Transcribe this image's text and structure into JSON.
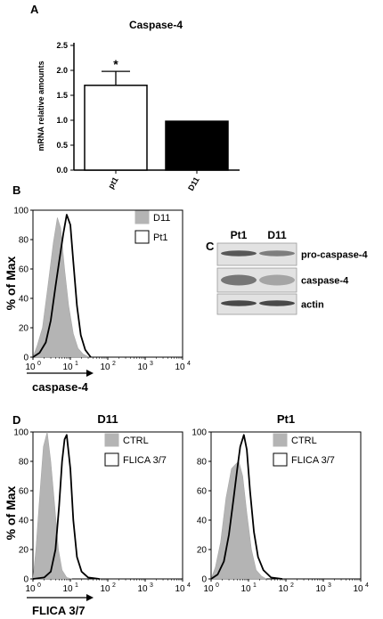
{
  "panel_a": {
    "letter": "A",
    "chart_data": {
      "type": "bar",
      "title": "Caspase-4",
      "ylabel": "mRNA relative amounts",
      "xlabel": "",
      "categories": [
        "pt1",
        "D11"
      ],
      "values": [
        1.7,
        0.98
      ],
      "errors": [
        0.28,
        0.0
      ],
      "fills": [
        "#ffffff",
        "#000000"
      ],
      "ylim": [
        0,
        2.5
      ],
      "yticks": [
        "0.0",
        "0.5",
        "1.0",
        "1.5",
        "2.0",
        "2.5"
      ],
      "annotation": "*"
    }
  },
  "panel_b": {
    "letter": "B",
    "chart_data": {
      "type": "area",
      "ylabel": "% of Max",
      "xlabel": "caspase-4",
      "x_scale": "log",
      "yticks": [
        "0",
        "20",
        "40",
        "60",
        "80",
        "100"
      ],
      "xticks": [
        "10",
        "10",
        "10",
        "10",
        "10"
      ],
      "xtick_exps": [
        "0",
        "1",
        "2",
        "3",
        "4"
      ],
      "series": [
        {
          "name": "D11",
          "style": "filled-gray",
          "x": [
            1,
            1.3,
            1.8,
            2.5,
            3.5,
            4.5,
            5.5,
            7,
            9,
            12,
            16,
            22,
            32
          ],
          "y": [
            0,
            8,
            20,
            48,
            78,
            95,
            88,
            60,
            35,
            16,
            6,
            2,
            0
          ]
        },
        {
          "name": "Pt1",
          "style": "black-outline",
          "x": [
            1,
            1.5,
            2.2,
            3,
            4,
            5,
            6.5,
            8,
            10,
            12,
            15,
            19,
            25,
            35
          ],
          "y": [
            0,
            3,
            10,
            25,
            48,
            65,
            84,
            97,
            90,
            65,
            35,
            15,
            5,
            0
          ]
        }
      ]
    }
  },
  "panel_c": {
    "letter": "C",
    "lanes": [
      "Pt1",
      "D11"
    ],
    "rows": [
      {
        "label": "pro-caspase-4",
        "intensity": [
          0.75,
          0.5
        ]
      },
      {
        "label": "caspase-4",
        "intensity": [
          0.55,
          0.25
        ]
      },
      {
        "label": "actin",
        "intensity": [
          0.85,
          0.85
        ]
      }
    ]
  },
  "panel_d": {
    "letter": "D",
    "ylabel": "% of Max",
    "xlabel": "FLICA 3/7",
    "chart_data": [
      {
        "type": "area",
        "title": "D11",
        "x_scale": "log",
        "yticks": [
          "0",
          "20",
          "40",
          "60",
          "80",
          "100"
        ],
        "xticks": [
          "10",
          "10",
          "10",
          "10",
          "10"
        ],
        "xtick_exps": [
          "0",
          "1",
          "2",
          "3",
          "4"
        ],
        "series": [
          {
            "name": "CTRL",
            "style": "filled-gray",
            "x": [
              1,
              1.2,
              1.5,
              1.9,
              2.4,
              3,
              3.8,
              4.8,
              6,
              8,
              11
            ],
            "y": [
              0,
              20,
              55,
              90,
              100,
              80,
              50,
              20,
              6,
              1,
              0
            ]
          },
          {
            "name": "FLICA 3/7",
            "style": "black-outline",
            "x": [
              1,
              2,
              3,
              4,
              5,
              6,
              7,
              8,
              10,
              12,
              15,
              20,
              30,
              60
            ],
            "y": [
              0,
              1,
              5,
              20,
              50,
              80,
              95,
              98,
              75,
              40,
              15,
              5,
              1,
              0
            ]
          }
        ]
      },
      {
        "type": "area",
        "title": "Pt1",
        "x_scale": "log",
        "yticks": [
          "0",
          "20",
          "40",
          "60",
          "80",
          "100"
        ],
        "xticks": [
          "10",
          "10",
          "10",
          "10",
          "10"
        ],
        "xtick_exps": [
          "0",
          "1",
          "2",
          "3",
          "4"
        ],
        "series": [
          {
            "name": "CTRL",
            "style": "filled-gray",
            "x": [
              1,
              1.3,
              1.8,
              2.5,
              3.5,
              4.5,
              5.5,
              7,
              9,
              12,
              16,
              22,
              30
            ],
            "y": [
              0,
              8,
              25,
              55,
              75,
              78,
              80,
              70,
              45,
              20,
              6,
              2,
              0
            ]
          },
          {
            "name": "FLICA 3/7",
            "style": "black-outline",
            "x": [
              1,
              1.5,
              2.2,
              3,
              4,
              5,
              6,
              7.5,
              9,
              11,
              14,
              18,
              25,
              40,
              80
            ],
            "y": [
              0,
              3,
              12,
              30,
              55,
              75,
              90,
              98,
              88,
              60,
              32,
              15,
              6,
              1,
              0
            ]
          }
        ]
      }
    ]
  }
}
